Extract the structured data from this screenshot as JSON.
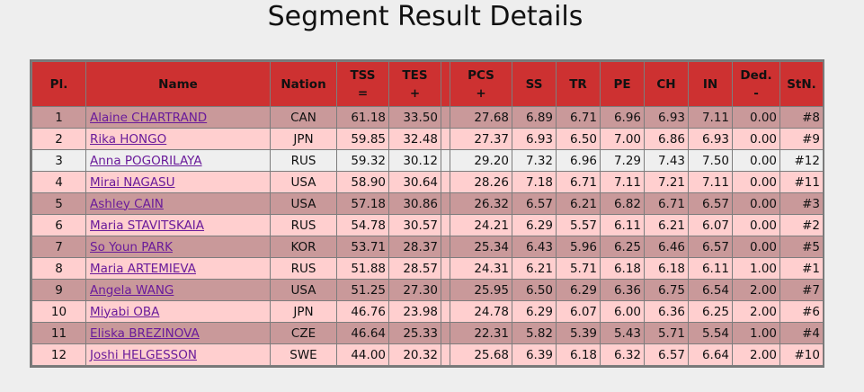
{
  "page": {
    "title": "Segment Result Details"
  },
  "table": {
    "headers": {
      "pl": "Pl.",
      "name": "Name",
      "nation": "Nation",
      "tss": "TSS",
      "tss_sub": "=",
      "tes": "TES",
      "tes_sub": "+",
      "pcs": "PCS",
      "pcs_sub": "+",
      "ss": "SS",
      "tr": "TR",
      "pe": "PE",
      "ch": "CH",
      "in": "IN",
      "ded": "Ded.",
      "ded_sub": "-",
      "stn": "StN."
    },
    "rows": [
      {
        "pl": "1",
        "name": "Alaine CHARTRAND",
        "nation": "CAN",
        "tss": "61.18",
        "tes": "33.50",
        "pcs": "27.68",
        "ss": "6.89",
        "tr": "6.71",
        "pe": "6.96",
        "ch": "6.93",
        "in": "7.11",
        "ded": "0.00",
        "stn": "#8"
      },
      {
        "pl": "2",
        "name": "Rika HONGO",
        "nation": "JPN",
        "tss": "59.85",
        "tes": "32.48",
        "pcs": "27.37",
        "ss": "6.93",
        "tr": "6.50",
        "pe": "7.00",
        "ch": "6.86",
        "in": "6.93",
        "ded": "0.00",
        "stn": "#9"
      },
      {
        "pl": "3",
        "name": "Anna POGORILAYA",
        "nation": "RUS",
        "tss": "59.32",
        "tes": "30.12",
        "pcs": "29.20",
        "ss": "7.32",
        "tr": "6.96",
        "pe": "7.29",
        "ch": "7.43",
        "in": "7.50",
        "ded": "0.00",
        "stn": "#12"
      },
      {
        "pl": "4",
        "name": "Mirai NAGASU",
        "nation": "USA",
        "tss": "58.90",
        "tes": "30.64",
        "pcs": "28.26",
        "ss": "7.18",
        "tr": "6.71",
        "pe": "7.11",
        "ch": "7.21",
        "in": "7.11",
        "ded": "0.00",
        "stn": "#11"
      },
      {
        "pl": "5",
        "name": "Ashley CAIN",
        "nation": "USA",
        "tss": "57.18",
        "tes": "30.86",
        "pcs": "26.32",
        "ss": "6.57",
        "tr": "6.21",
        "pe": "6.82",
        "ch": "6.71",
        "in": "6.57",
        "ded": "0.00",
        "stn": "#3"
      },
      {
        "pl": "6",
        "name": "Maria STAVITSKAIA",
        "nation": "RUS",
        "tss": "54.78",
        "tes": "30.57",
        "pcs": "24.21",
        "ss": "6.29",
        "tr": "5.57",
        "pe": "6.11",
        "ch": "6.21",
        "in": "6.07",
        "ded": "0.00",
        "stn": "#2"
      },
      {
        "pl": "7",
        "name": "So Youn PARK",
        "nation": "KOR",
        "tss": "53.71",
        "tes": "28.37",
        "pcs": "25.34",
        "ss": "6.43",
        "tr": "5.96",
        "pe": "6.25",
        "ch": "6.46",
        "in": "6.57",
        "ded": "0.00",
        "stn": "#5"
      },
      {
        "pl": "8",
        "name": "Maria ARTEMIEVA",
        "nation": "RUS",
        "tss": "51.88",
        "tes": "28.57",
        "pcs": "24.31",
        "ss": "6.21",
        "tr": "5.71",
        "pe": "6.18",
        "ch": "6.18",
        "in": "6.11",
        "ded": "1.00",
        "stn": "#1"
      },
      {
        "pl": "9",
        "name": "Angela WANG",
        "nation": "USA",
        "tss": "51.25",
        "tes": "27.30",
        "pcs": "25.95",
        "ss": "6.50",
        "tr": "6.29",
        "pe": "6.36",
        "ch": "6.75",
        "in": "6.54",
        "ded": "2.00",
        "stn": "#7"
      },
      {
        "pl": "10",
        "name": "Miyabi OBA",
        "nation": "JPN",
        "tss": "46.76",
        "tes": "23.98",
        "pcs": "24.78",
        "ss": "6.29",
        "tr": "6.07",
        "pe": "6.00",
        "ch": "6.36",
        "in": "6.25",
        "ded": "2.00",
        "stn": "#6"
      },
      {
        "pl": "11",
        "name": "Eliska BREZINOVA",
        "nation": "CZE",
        "tss": "46.64",
        "tes": "25.33",
        "pcs": "22.31",
        "ss": "5.82",
        "tr": "5.39",
        "pe": "5.43",
        "ch": "5.71",
        "in": "5.54",
        "ded": "1.00",
        "stn": "#4"
      },
      {
        "pl": "12",
        "name": "Joshi HELGESSON",
        "nation": "SWE",
        "tss": "44.00",
        "tes": "20.32",
        "pcs": "25.68",
        "ss": "6.39",
        "tr": "6.18",
        "pe": "6.32",
        "ch": "6.57",
        "in": "6.64",
        "ded": "2.00",
        "stn": "#10"
      }
    ]
  }
}
